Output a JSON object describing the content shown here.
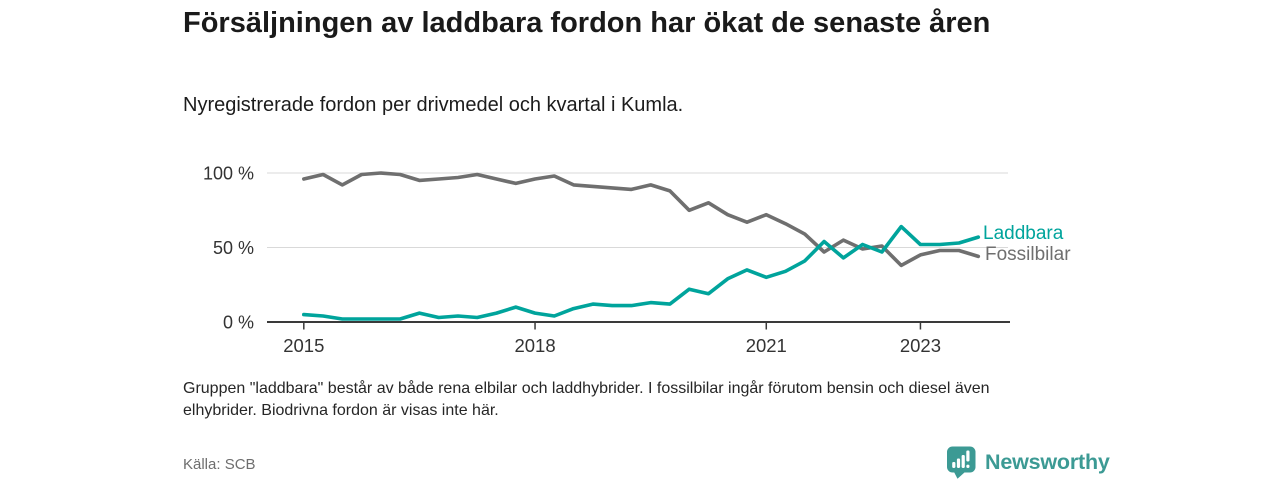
{
  "chart_data": {
    "type": "line",
    "title": "Försäljningen av laddbara fordon har ökat de senaste åren",
    "subtitle": "Nyregistrerade fordon per drivmedel och kvartal i Kumla.",
    "unit": "%",
    "ylim": [
      0,
      100
    ],
    "grid": "horizontal",
    "legend_position": "right-inline-at-line-end",
    "categories": [
      "2015K1",
      "2015K2",
      "2015K3",
      "2015K4",
      "2016K1",
      "2016K2",
      "2016K3",
      "2016K4",
      "2017K1",
      "2017K2",
      "2017K3",
      "2017K4",
      "2018K1",
      "2018K2",
      "2018K3",
      "2018K4",
      "2019K1",
      "2019K2",
      "2019K3",
      "2019K4",
      "2020K1",
      "2020K2",
      "2020K3",
      "2020K4",
      "2021K1",
      "2021K2",
      "2021K3",
      "2021K4",
      "2022K1",
      "2022K2",
      "2022K3",
      "2022K4",
      "2023K1",
      "2023K2",
      "2023K3",
      "2023K4"
    ],
    "series": [
      {
        "name": "Laddbara",
        "color": "#00a49c",
        "values": [
          5,
          4,
          2,
          2,
          2,
          2,
          6,
          3,
          4,
          3,
          6,
          10,
          6,
          4,
          9,
          12,
          11,
          11,
          13,
          12,
          22,
          19,
          29,
          35,
          30,
          34,
          41,
          54,
          43,
          52,
          47,
          64,
          52,
          52,
          53,
          57
        ]
      },
      {
        "name": "Fossilbilar",
        "color": "#6f6f6f",
        "values": [
          96,
          99,
          92,
          99,
          100,
          99,
          95,
          96,
          97,
          99,
          96,
          93,
          96,
          98,
          92,
          91,
          90,
          89,
          92,
          88,
          75,
          80,
          72,
          67,
          72,
          66,
          59,
          47,
          55,
          49,
          51,
          38,
          45,
          48,
          48,
          44
        ]
      }
    ],
    "y_ticks": [
      {
        "value": 0,
        "label": "0 %"
      },
      {
        "value": 50,
        "label": "50 %"
      },
      {
        "value": 100,
        "label": "100 %"
      }
    ],
    "x_ticks": [
      {
        "pos": 0,
        "label": "2015"
      },
      {
        "pos": 12,
        "label": "2018"
      },
      {
        "pos": 24,
        "label": "2021"
      },
      {
        "pos": 32,
        "label": "2023"
      }
    ]
  },
  "footnote": "Gruppen \"laddbara\" består av både rena elbilar och laddhybrider. I fossilbilar ingår förutom bensin och diesel även elhybrider. Biodrivna fordon är visas inte här.",
  "source": "Källa: SCB",
  "logo": {
    "text": "Newsworthy",
    "color": "#3c9a94"
  },
  "colors": {
    "accent_teal": "#00a49c",
    "series_gray": "#6f6f6f",
    "grid": "#d9d9d9",
    "axis": "#3a3a3a",
    "title_text": "#1a1a1a",
    "muted_text": "#6e6e6e"
  }
}
